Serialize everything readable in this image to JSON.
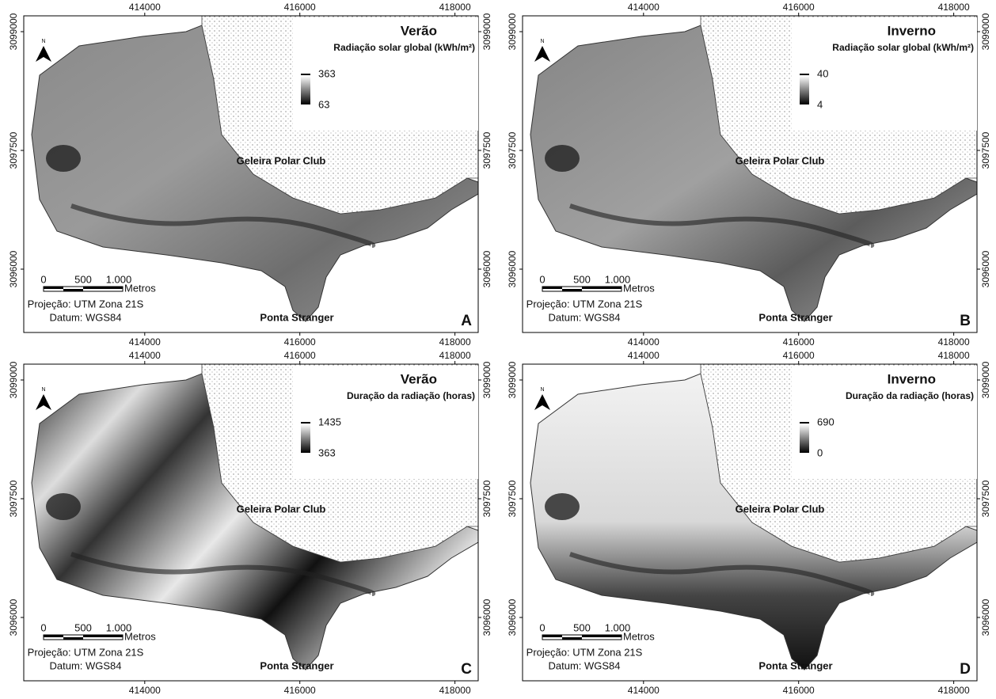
{
  "panels": [
    {
      "letter": "A",
      "title": "Verão",
      "subtitle": "Radiação solar global (kWh/m²)",
      "legend_max": 363,
      "legend_min": 63
    },
    {
      "letter": "B",
      "title": "Inverno",
      "subtitle": "Radiação solar global (kWh/m²)",
      "legend_max": 40,
      "legend_min": 4
    },
    {
      "letter": "C",
      "title": "Verão",
      "subtitle": "Duração da radiação (horas)",
      "legend_max": 1435,
      "legend_min": 363
    },
    {
      "letter": "D",
      "title": "Inverno",
      "subtitle": "Duração da radiação (horas)",
      "legend_max": 690,
      "legend_min": 0
    }
  ],
  "common": {
    "north": "N",
    "glacier": "Geleira Polar Club",
    "point": "Ponta Stranger",
    "scale_labels": [
      "0",
      "500",
      "1.000"
    ],
    "scale_unit": "Metros",
    "projection": "Projeção: UTM Zona 21S",
    "datum": "Datum: WGS84"
  },
  "xticks": [
    414000,
    416000,
    418000
  ],
  "yticks": [
    3099000,
    3097500,
    3096000
  ],
  "xlim": [
    412440,
    418300
  ],
  "ylim": [
    3095200,
    3099200
  ]
}
